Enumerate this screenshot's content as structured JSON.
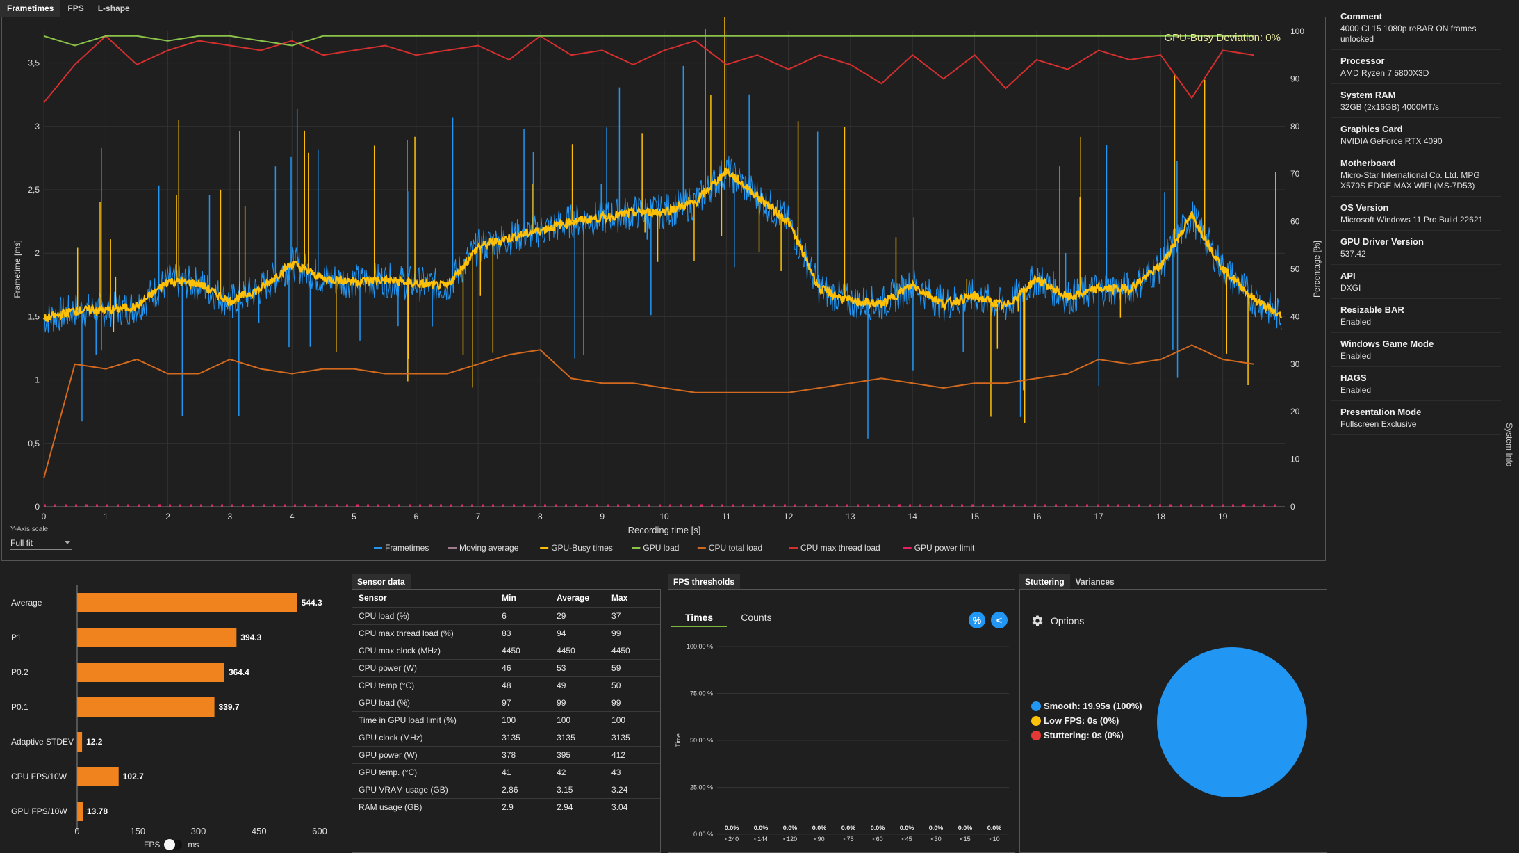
{
  "top_tabs": [
    "Frametimes",
    "FPS",
    "L-shape"
  ],
  "main_chart": {
    "annotation": "GPU-Busy Deviation: 0%",
    "xlabel": "Recording time [s]",
    "ylabel_left": "Frametime [ms]",
    "ylabel_right": "Percentage [%]",
    "x_ticks": [
      "0",
      "1",
      "2",
      "3",
      "4",
      "5",
      "6",
      "7",
      "8",
      "9",
      "10",
      "11",
      "12",
      "13",
      "14",
      "15",
      "16",
      "17",
      "18",
      "19"
    ],
    "y_left_ticks": [
      "0",
      "0,5",
      "1",
      "1,5",
      "2",
      "2,5",
      "3",
      "3,5"
    ],
    "y_right_ticks": [
      "0",
      "10",
      "20",
      "30",
      "40",
      "50",
      "60",
      "70",
      "80",
      "90",
      "100"
    ],
    "y_axis_scale_label": "Y-Axis scale",
    "y_axis_scale_value": "Full fit",
    "legend": [
      {
        "name": "Frametimes",
        "color": "#2196f3"
      },
      {
        "name": "Moving average",
        "color": "#9e7c8c"
      },
      {
        "name": "GPU-Busy times",
        "color": "#ffc107"
      },
      {
        "name": "GPU load",
        "color": "#8bc34a"
      },
      {
        "name": "CPU total load",
        "color": "#d2691e"
      },
      {
        "name": "CPU max thread load",
        "color": "#d32f2f"
      },
      {
        "name": "GPU power limit",
        "color": "#e91e63"
      }
    ]
  },
  "chart_data": {
    "type": "line",
    "xlim": [
      0,
      20
    ],
    "ylim_left": [
      0,
      3.75
    ],
    "ylim_right": [
      0,
      100
    ],
    "x": [
      0,
      0.5,
      1,
      1.5,
      2,
      2.5,
      3,
      3.5,
      4,
      4.5,
      5,
      5.5,
      6,
      6.5,
      7,
      7.5,
      8,
      8.5,
      9,
      9.5,
      10,
      10.5,
      11,
      11.5,
      12,
      12.5,
      13,
      13.5,
      14,
      14.5,
      15,
      15.5,
      16,
      16.5,
      17,
      17.5,
      18,
      18.5,
      19,
      19.5,
      19.95
    ],
    "series": [
      {
        "name": "Frametimes",
        "axis": "left",
        "values": [
          1.48,
          1.55,
          1.55,
          1.58,
          1.78,
          1.76,
          1.62,
          1.72,
          1.92,
          1.8,
          1.78,
          1.79,
          1.76,
          1.74,
          2.05,
          2.12,
          2.18,
          2.25,
          2.28,
          2.32,
          2.33,
          2.4,
          2.65,
          2.45,
          2.25,
          1.72,
          1.62,
          1.6,
          1.75,
          1.6,
          1.66,
          1.58,
          1.8,
          1.65,
          1.72,
          1.72,
          1.9,
          2.3,
          1.88,
          1.64,
          1.48
        ]
      },
      {
        "name": "Moving average",
        "axis": "left",
        "values": [
          1.47,
          1.54,
          1.54,
          1.57,
          1.77,
          1.75,
          1.61,
          1.71,
          1.9,
          1.79,
          1.77,
          1.78,
          1.75,
          1.73,
          2.04,
          2.11,
          2.17,
          2.24,
          2.27,
          2.31,
          2.32,
          2.39,
          2.62,
          2.44,
          2.24,
          1.71,
          1.61,
          1.59,
          1.74,
          1.59,
          1.65,
          1.57,
          1.79,
          1.64,
          1.71,
          1.71,
          1.89,
          2.28,
          1.87,
          1.63,
          1.47
        ]
      },
      {
        "name": "GPU-Busy times",
        "axis": "left",
        "values": [
          1.48,
          1.55,
          1.55,
          1.58,
          1.78,
          1.76,
          1.62,
          1.72,
          1.92,
          1.8,
          1.78,
          1.79,
          1.76,
          1.74,
          2.05,
          2.12,
          2.18,
          2.25,
          2.28,
          2.32,
          2.33,
          2.4,
          2.65,
          2.45,
          2.25,
          1.72,
          1.62,
          1.6,
          1.75,
          1.6,
          1.66,
          1.58,
          1.8,
          1.65,
          1.72,
          1.72,
          1.9,
          2.3,
          1.88,
          1.64,
          1.48
        ]
      },
      {
        "name": "GPU load",
        "axis": "right",
        "values": [
          99,
          97,
          99,
          99,
          98,
          99,
          99,
          98,
          97,
          99,
          99,
          99,
          99,
          99,
          99,
          99,
          99,
          99,
          99,
          99,
          99,
          99,
          99,
          99,
          99,
          99,
          99,
          99,
          99,
          99,
          99,
          99,
          99,
          99,
          99,
          99,
          99,
          99,
          99,
          99,
          99
        ]
      },
      {
        "name": "CPU total load",
        "axis": "right",
        "values": [
          6,
          30,
          29,
          31,
          28,
          28,
          31,
          29,
          28,
          29,
          29,
          28,
          28,
          28,
          30,
          32,
          33,
          27,
          26,
          26,
          25,
          24,
          24,
          24,
          24,
          25,
          26,
          27,
          26,
          25,
          26,
          26,
          27,
          28,
          31,
          30,
          31,
          34,
          31,
          30,
          35
        ]
      },
      {
        "name": "CPU max thread load",
        "axis": "right",
        "values": [
          85,
          93,
          99,
          93,
          96,
          98,
          97,
          96,
          98,
          95,
          96,
          97,
          95,
          96,
          97,
          94,
          99,
          95,
          96,
          93,
          96,
          98,
          93,
          95,
          92,
          95,
          93,
          89,
          95,
          90,
          95,
          88,
          94,
          92,
          96,
          94,
          95,
          86,
          96,
          95,
          93
        ]
      },
      {
        "name": "GPU power limit",
        "axis": "right",
        "values": [
          0,
          0,
          0,
          0,
          0,
          0,
          0,
          0,
          0,
          0,
          0,
          0,
          0,
          0,
          0,
          0,
          0,
          0,
          0,
          0,
          0,
          0,
          0,
          0,
          0,
          0,
          0,
          0,
          0,
          0,
          0,
          0,
          0,
          0,
          0,
          0,
          0,
          0,
          0,
          0,
          0
        ]
      }
    ]
  },
  "system_info": [
    {
      "label": "Comment",
      "value": "4000 CL15 1080p reBAR ON frames unlocked"
    },
    {
      "label": "Processor",
      "value": "AMD Ryzen 7 5800X3D"
    },
    {
      "label": "System RAM",
      "value": "32GB (2x16GB) 4000MT/s"
    },
    {
      "label": "Graphics Card",
      "value": "NVIDIA GeForce RTX 4090"
    },
    {
      "label": "Motherboard",
      "value": "Micro-Star International Co. Ltd. MPG X570S EDGE MAX WIFI (MS-7D53)"
    },
    {
      "label": "OS Version",
      "value": "Microsoft Windows 11 Pro Build 22621"
    },
    {
      "label": "GPU Driver Version",
      "value": "537.42"
    },
    {
      "label": "API",
      "value": "DXGI"
    },
    {
      "label": "Resizable BAR",
      "value": "Enabled"
    },
    {
      "label": "Windows Game Mode",
      "value": "Enabled"
    },
    {
      "label": "HAGS",
      "value": "Enabled"
    },
    {
      "label": "Presentation Mode",
      "value": "Fullscreen Exclusive"
    }
  ],
  "system_info_side_label": "System Info",
  "bar_chart": {
    "type": "bar",
    "categories": [
      "Average",
      "P1",
      "P0.2",
      "P0.1",
      "Adaptive STDEV",
      "CPU FPS/10W",
      "GPU FPS/10W"
    ],
    "values": [
      544.3,
      394.3,
      364.4,
      339.7,
      12.2,
      102.7,
      13.78
    ],
    "value_labels": [
      "544.3",
      "394.3",
      "364.4",
      "339.7",
      "12.2",
      "102.7",
      "13.78"
    ],
    "x_ticks": [
      "0",
      "150",
      "300",
      "450",
      "600"
    ],
    "xlim": [
      0,
      600
    ],
    "color": "#f0831e",
    "toggle_left": "FPS",
    "toggle_right": "ms"
  },
  "sensor_panel": {
    "tab": "Sensor data",
    "headers": [
      "Sensor",
      "Min",
      "Average",
      "Max"
    ],
    "rows": [
      [
        "CPU load (%)",
        "6",
        "29",
        "37"
      ],
      [
        "CPU max thread load (%)",
        "83",
        "94",
        "99"
      ],
      [
        "CPU max clock (MHz)",
        "4450",
        "4450",
        "4450"
      ],
      [
        "CPU power (W)",
        "46",
        "53",
        "59"
      ],
      [
        "CPU temp (°C)",
        "48",
        "49",
        "50"
      ],
      [
        "GPU load (%)",
        "97",
        "99",
        "99"
      ],
      [
        "Time in GPU load limit (%)",
        "100",
        "100",
        "100"
      ],
      [
        "GPU clock (MHz)",
        "3135",
        "3135",
        "3135"
      ],
      [
        "GPU power (W)",
        "378",
        "395",
        "412"
      ],
      [
        "GPU temp. (°C)",
        "41",
        "42",
        "43"
      ],
      [
        "GPU VRAM usage (GB)",
        "2.86",
        "3.15",
        "3.24"
      ],
      [
        "RAM usage (GB)",
        "2.9",
        "2.94",
        "3.04"
      ]
    ]
  },
  "fps_thresholds": {
    "tab": "FPS thresholds",
    "subtabs": [
      "Times",
      "Counts"
    ],
    "percent_button": "%",
    "share_button": "<",
    "ylabel": "Time",
    "y_ticks": [
      "0.00 %",
      "25.00 %",
      "50.00 %",
      "75.00 %",
      "100.00 %"
    ],
    "categories": [
      "<240",
      "<144",
      "<120",
      "<90",
      "<75",
      "<60",
      "<45",
      "<30",
      "<15",
      "<10"
    ],
    "value_labels": [
      "0.0%",
      "0.0%",
      "0.0%",
      "0.0%",
      "0.0%",
      "0.0%",
      "0.0%",
      "0.0%",
      "0.0%",
      "0.0%"
    ]
  },
  "stutter_panel": {
    "tabs": [
      "Stuttering",
      "Variances"
    ],
    "options_label": "Options",
    "legend": [
      {
        "label": "Smooth:",
        "value": "19.95s (100%)",
        "color": "#2196f3"
      },
      {
        "label": "Low FPS:",
        "value": "0s (0%)",
        "color": "#ffc107"
      },
      {
        "label": "Stuttering:",
        "value": "0s (0%)",
        "color": "#e53935"
      }
    ],
    "pie": {
      "type": "pie",
      "values": [
        100,
        0,
        0
      ]
    }
  }
}
